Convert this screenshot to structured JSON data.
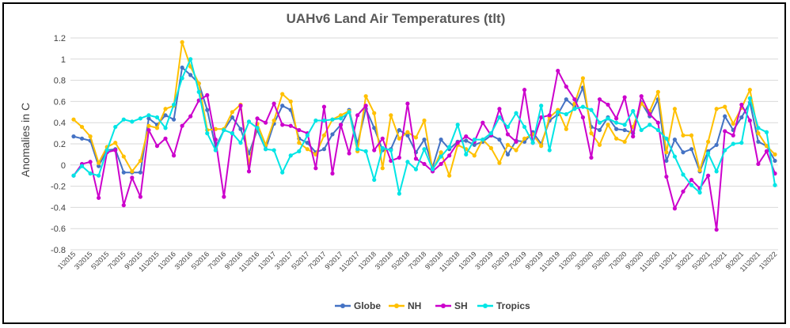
{
  "chart_data": {
    "type": "line",
    "title": "UAHv6 Land Air Temperatures (tlt)",
    "xlabel": "",
    "ylabel": "Anomalies in C",
    "ylim": [
      -0.8,
      1.2
    ],
    "yticks": [
      "-0.8",
      "-0.6",
      "-0.4",
      "-0.2",
      "0",
      "0.2",
      "0.4",
      "0.6",
      "0.8",
      "1",
      "1.2"
    ],
    "grid": true,
    "legend_position": "bottom",
    "x_tick_labels": [
      "1\\2015",
      "3\\2015",
      "5\\2015",
      "7\\2015",
      "9\\2015",
      "11\\2015",
      "1\\2016",
      "3\\2016",
      "5\\2016",
      "7\\2016",
      "9\\2016",
      "11\\2016",
      "1\\2017",
      "3\\2017",
      "5\\2017",
      "7\\2017",
      "9\\2017",
      "11\\2017",
      "1\\2018",
      "3\\2018",
      "5\\2018",
      "7\\2018",
      "9\\2018",
      "11\\2018",
      "1\\2019",
      "3\\2019",
      "5\\2019",
      "7\\2019",
      "9\\2019",
      "11\\2019",
      "1\\2020",
      "3\\2020",
      "5\\2020",
      "7\\2020",
      "9\\2020",
      "11\\2020",
      "1\\2021",
      "3\\2021",
      "5\\2021",
      "7\\2021",
      "9\\2021",
      "11\\2021",
      "1\\2022"
    ],
    "series": [
      {
        "name": "Globe",
        "color": "#4472c4",
        "values": [
          0.27,
          0.25,
          0.23,
          -0.01,
          0.14,
          0.15,
          -0.07,
          -0.07,
          -0.07,
          0.44,
          0.38,
          0.47,
          0.43,
          0.92,
          0.85,
          0.77,
          0.52,
          0.17,
          0.33,
          0.45,
          0.34,
          0.11,
          0.33,
          0.15,
          0.39,
          0.56,
          0.52,
          0.25,
          0.21,
          0.12,
          0.15,
          0.29,
          0.38,
          0.52,
          0.2,
          0.53,
          0.35,
          0.14,
          0.15,
          0.33,
          0.28,
          0.12,
          0.24,
          -0.02,
          0.24,
          0.15,
          0.22,
          0.23,
          0.19,
          0.22,
          0.28,
          0.24,
          0.1,
          0.23,
          0.22,
          0.31,
          0.2,
          0.42,
          0.48,
          0.62,
          0.55,
          0.73,
          0.36,
          0.33,
          0.45,
          0.34,
          0.33,
          0.3,
          0.59,
          0.46,
          0.62,
          0.04,
          0.24,
          0.12,
          0.15,
          -0.06,
          0.13,
          0.19,
          0.46,
          0.33,
          0.45,
          0.59,
          0.22,
          0.18,
          0.04
        ]
      },
      {
        "name": "NH",
        "color": "#ffc000",
        "values": [
          0.43,
          0.36,
          0.27,
          0.02,
          0.17,
          0.21,
          0.08,
          -0.06,
          0.04,
          0.37,
          0.35,
          0.53,
          0.56,
          1.16,
          0.93,
          0.77,
          0.33,
          0.34,
          0.34,
          0.5,
          0.57,
          0.01,
          0.39,
          0.19,
          0.42,
          0.67,
          0.6,
          0.21,
          0.15,
          0.1,
          0.28,
          0.43,
          0.47,
          0.51,
          0.13,
          0.65,
          0.49,
          -0.03,
          0.47,
          0.25,
          0.31,
          0.26,
          0.42,
          -0.05,
          0.12,
          -0.1,
          0.19,
          0.15,
          0.09,
          0.24,
          0.16,
          0.02,
          0.19,
          0.14,
          0.25,
          0.29,
          0.18,
          0.45,
          0.52,
          0.34,
          0.58,
          0.82,
          0.3,
          0.19,
          0.38,
          0.25,
          0.22,
          0.36,
          0.58,
          0.51,
          0.69,
          0.12,
          0.53,
          0.28,
          0.28,
          -0.05,
          0.22,
          0.53,
          0.55,
          0.39,
          0.54,
          0.71,
          0.3,
          0.18,
          0.1
        ]
      },
      {
        "name": "SH",
        "color": "#cc00cc",
        "values": [
          -0.1,
          0.01,
          0.03,
          -0.31,
          0.12,
          0.14,
          -0.38,
          -0.12,
          -0.3,
          0.33,
          0.18,
          0.25,
          0.09,
          0.37,
          0.46,
          0.61,
          0.66,
          0.24,
          -0.3,
          0.3,
          0.56,
          -0.06,
          0.44,
          0.4,
          0.58,
          0.38,
          0.37,
          0.33,
          0.3,
          -0.03,
          0.55,
          -0.08,
          0.38,
          0.11,
          0.47,
          0.56,
          0.14,
          0.25,
          0.04,
          0.07,
          0.58,
          0.06,
          0.01,
          -0.06,
          0.01,
          0.09,
          0.21,
          0.27,
          0.22,
          0.4,
          0.28,
          0.53,
          0.29,
          0.22,
          0.71,
          0.21,
          0.45,
          0.47,
          0.89,
          0.74,
          0.62,
          0.45,
          0.07,
          0.62,
          0.57,
          0.44,
          0.64,
          0.27,
          0.65,
          0.48,
          0.4,
          -0.11,
          -0.41,
          -0.25,
          -0.14,
          -0.22,
          -0.1,
          -0.61,
          0.32,
          0.28,
          0.57,
          0.42,
          0.01,
          0.13,
          -0.08
        ]
      },
      {
        "name": "Tropics",
        "color": "#00e5e5",
        "values": [
          -0.1,
          -0.01,
          -0.08,
          -0.1,
          0.14,
          0.36,
          0.43,
          0.41,
          0.44,
          0.47,
          0.45,
          0.35,
          0.57,
          0.82,
          1.0,
          0.69,
          0.3,
          0.14,
          0.33,
          0.3,
          0.21,
          0.41,
          0.35,
          0.15,
          0.14,
          -0.07,
          0.09,
          0.13,
          0.28,
          0.42,
          0.42,
          0.43,
          0.44,
          0.5,
          0.15,
          0.13,
          -0.14,
          0.16,
          0.14,
          -0.27,
          0.03,
          -0.04,
          0.15,
          -0.04,
          0.08,
          0.17,
          0.38,
          0.1,
          0.24,
          0.24,
          0.3,
          0.45,
          0.36,
          0.49,
          0.36,
          0.21,
          0.56,
          0.14,
          0.5,
          0.48,
          0.53,
          0.55,
          0.52,
          0.4,
          0.44,
          0.4,
          0.38,
          0.51,
          0.33,
          0.38,
          0.33,
          0.25,
          0.08,
          -0.09,
          -0.19,
          -0.26,
          0.11,
          -0.06,
          0.14,
          0.2,
          0.21,
          0.63,
          0.35,
          0.31,
          -0.19
        ]
      }
    ]
  }
}
